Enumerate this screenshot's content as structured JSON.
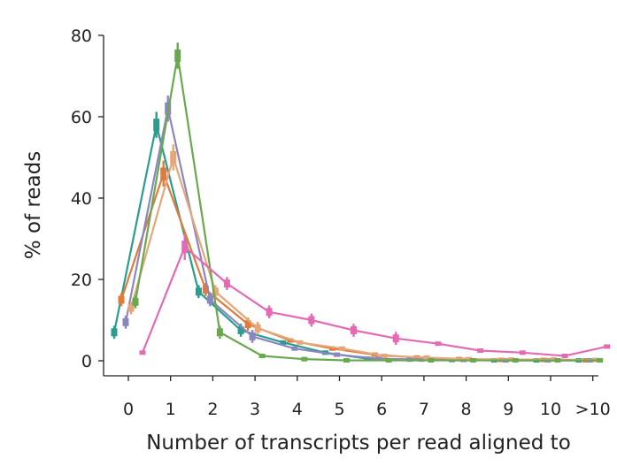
{
  "chart_data": {
    "type": "line",
    "xlabel": "Number of transcripts per read aligned to",
    "ylabel": "% of reads",
    "categories": [
      "0",
      "1",
      "2",
      "3",
      "4",
      "5",
      "6",
      "7",
      "8",
      "9",
      "10",
      ">10"
    ],
    "ylim": [
      0,
      80
    ],
    "yticks": [
      0,
      20,
      40,
      60,
      80
    ],
    "grid": false,
    "legend": "none",
    "series": [
      {
        "color": "#2a9d8f",
        "values": [
          7,
          58,
          17,
          7.5,
          4.5,
          2,
          0.5,
          0.3,
          0.2,
          0.1,
          0.1,
          0.1
        ]
      },
      {
        "color": "#e07b39",
        "values": [
          15,
          46,
          17.5,
          9,
          5,
          3,
          1.5,
          0.8,
          0.4,
          0.2,
          0.2,
          0.1
        ]
      },
      {
        "color": "#8c86c0",
        "values": [
          9.5,
          62,
          15,
          6,
          3,
          1.5,
          0.5,
          0.3,
          0.2,
          0.1,
          0.1,
          0.1
        ]
      },
      {
        "color": "#e5a77a",
        "values": [
          13,
          50,
          17,
          8,
          4.5,
          3,
          1.2,
          0.8,
          0.4,
          0.3,
          0.3,
          0.2
        ]
      },
      {
        "color": "#6aa84f",
        "values": [
          14.5,
          75,
          7,
          1.2,
          0.4,
          0.1,
          0.1,
          0.1,
          0.1,
          0.1,
          0.1,
          0.1
        ]
      },
      {
        "color": "#e36ab5",
        "values": [
          2,
          28,
          19,
          12,
          10,
          7.5,
          5.5,
          4.2,
          2.5,
          2,
          1.2,
          3.5
        ]
      }
    ]
  }
}
